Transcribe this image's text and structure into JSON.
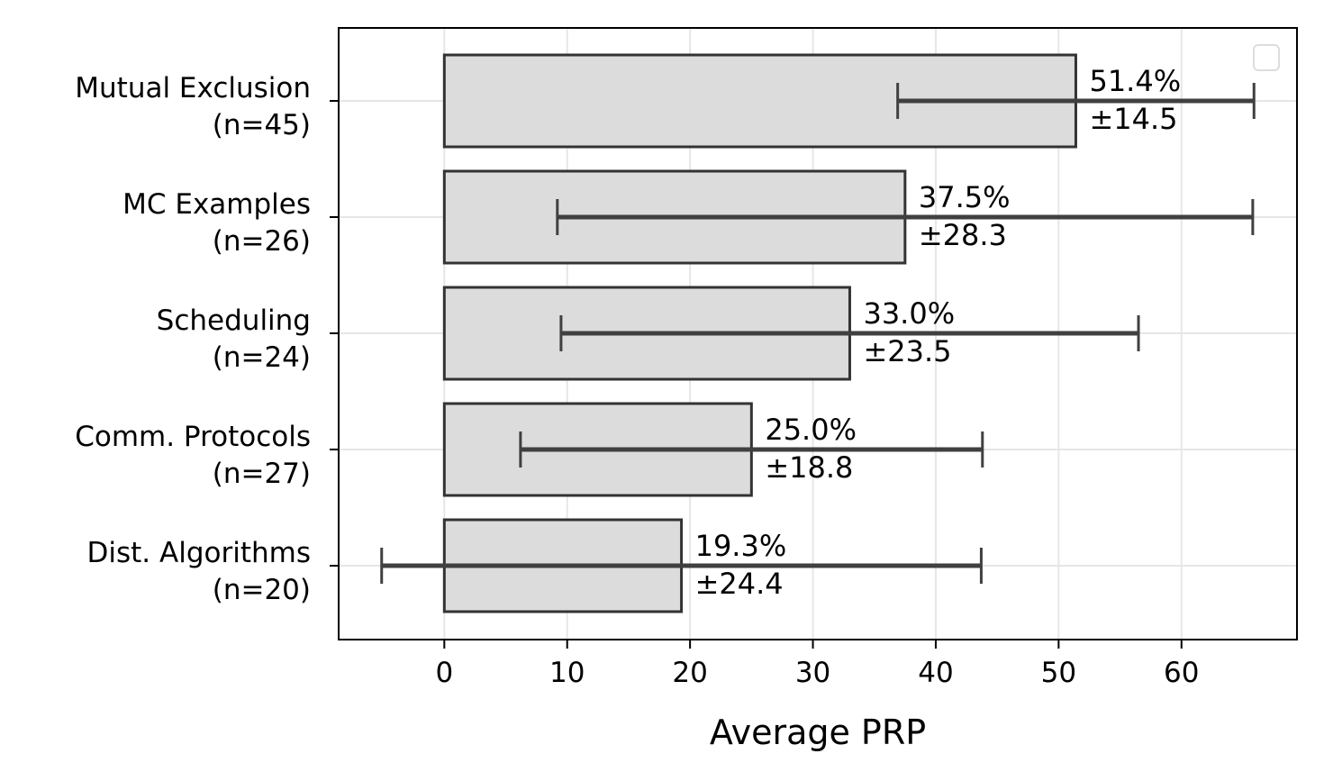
{
  "chart_data": {
    "type": "bar",
    "orientation": "horizontal",
    "title": "",
    "xlabel": "Average PRP",
    "ylabel": "",
    "xlim": [
      -8.6,
      69.4
    ],
    "xticks": [
      "0",
      "10",
      "20",
      "30",
      "40",
      "50",
      "60"
    ],
    "grid": true,
    "legend": "top-right (empty)",
    "bar_color": "#dcdcdc",
    "bar_edge_color": "#333333",
    "error_color": "#404040",
    "categories": [
      {
        "name": "Mutual Exclusion",
        "n": "(n=45)",
        "value": 51.4,
        "error": 14.5,
        "value_label": "51.4%",
        "error_label": "±14.5"
      },
      {
        "name": "MC Examples",
        "n": "(n=26)",
        "value": 37.5,
        "error": 28.3,
        "value_label": "37.5%",
        "error_label": "±28.3"
      },
      {
        "name": "Scheduling",
        "n": "(n=24)",
        "value": 33.0,
        "error": 23.5,
        "value_label": "33.0%",
        "error_label": "±23.5"
      },
      {
        "name": "Comm. Protocols",
        "n": "(n=27)",
        "value": 25.0,
        "error": 18.8,
        "value_label": "25.0%",
        "error_label": "±18.8"
      },
      {
        "name": "Dist. Algorithms",
        "n": "(n=20)",
        "value": 19.3,
        "error": 24.4,
        "value_label": "19.3%",
        "error_label": "±24.4"
      }
    ]
  }
}
